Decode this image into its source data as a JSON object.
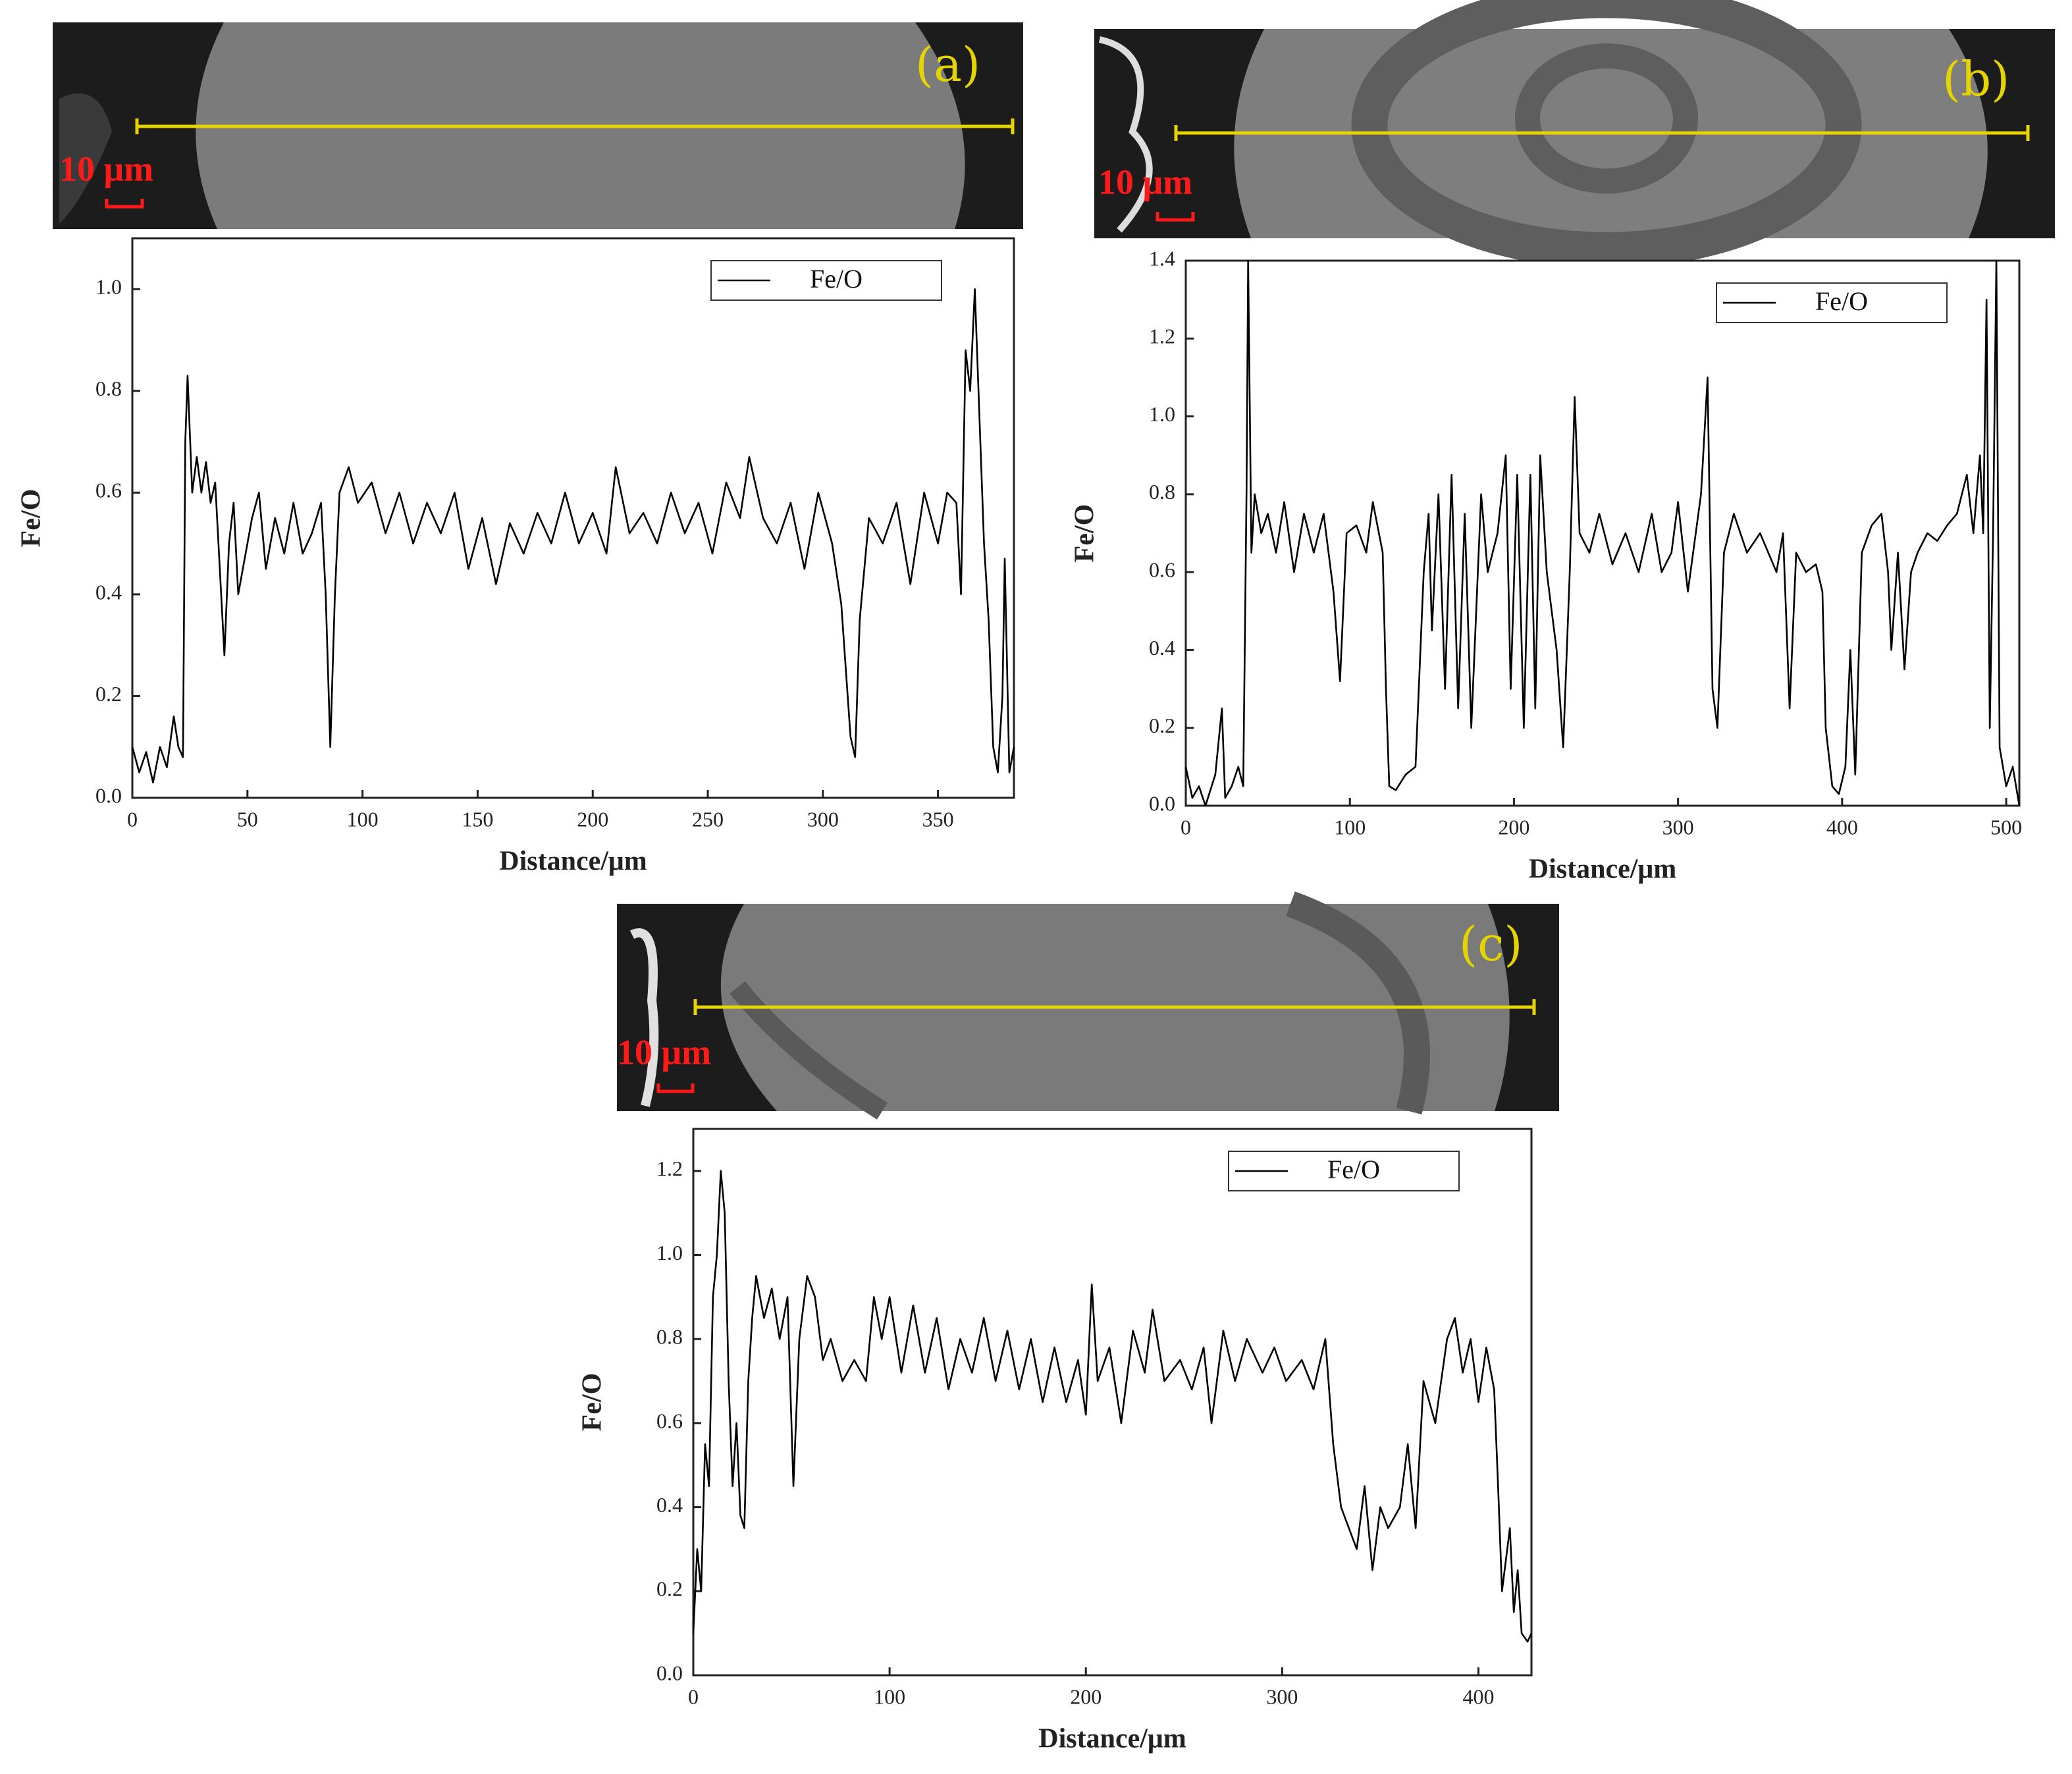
{
  "chart_data": [
    {
      "type": "line",
      "panel_label": "(a)",
      "scale_bar": "10 μm",
      "xlabel": "Distance/μm",
      "ylabel": "Fe/O",
      "legend": "upper right",
      "xlim": [
        0,
        383
      ],
      "ylim": [
        0,
        1.1
      ],
      "xticks": [
        0,
        50,
        100,
        150,
        200,
        250,
        300,
        350
      ],
      "yticks": [
        {
          "value": 0,
          "label": "0.0"
        },
        0.2,
        0.4,
        0.6,
        0.8,
        {
          "value": 1,
          "label": "1.0"
        }
      ],
      "x": [
        0,
        3,
        6,
        9,
        12,
        15,
        18,
        20,
        22,
        23,
        24,
        26,
        28,
        30,
        32,
        34,
        36,
        38,
        40,
        42,
        44,
        46,
        48,
        52,
        55,
        58,
        62,
        66,
        70,
        74,
        78,
        82,
        84,
        86,
        88,
        90,
        94,
        98,
        104,
        110,
        116,
        122,
        128,
        134,
        140,
        146,
        152,
        158,
        164,
        170,
        176,
        182,
        188,
        194,
        200,
        206,
        210,
        216,
        222,
        228,
        234,
        240,
        246,
        252,
        258,
        264,
        268,
        274,
        280,
        286,
        292,
        298,
        304,
        308,
        312,
        314,
        316,
        320,
        326,
        332,
        338,
        344,
        350,
        354,
        358,
        360,
        362,
        364,
        366,
        368,
        370,
        372,
        374,
        376,
        378,
        379,
        381,
        383
      ],
      "series": [
        {
          "name": "Fe/O",
          "color": "#000000",
          "values": [
            0.1,
            0.05,
            0.09,
            0.03,
            0.1,
            0.06,
            0.16,
            0.1,
            0.08,
            0.7,
            0.83,
            0.6,
            0.67,
            0.6,
            0.66,
            0.58,
            0.62,
            0.45,
            0.28,
            0.5,
            0.58,
            0.4,
            0.45,
            0.55,
            0.6,
            0.45,
            0.55,
            0.48,
            0.58,
            0.48,
            0.52,
            0.58,
            0.4,
            0.1,
            0.4,
            0.6,
            0.65,
            0.58,
            0.62,
            0.52,
            0.6,
            0.5,
            0.58,
            0.52,
            0.6,
            0.45,
            0.55,
            0.42,
            0.54,
            0.48,
            0.56,
            0.5,
            0.6,
            0.5,
            0.56,
            0.48,
            0.65,
            0.52,
            0.56,
            0.5,
            0.6,
            0.52,
            0.58,
            0.48,
            0.62,
            0.55,
            0.67,
            0.55,
            0.5,
            0.58,
            0.45,
            0.6,
            0.5,
            0.38,
            0.12,
            0.08,
            0.35,
            0.55,
            0.5,
            0.58,
            0.42,
            0.6,
            0.5,
            0.6,
            0.58,
            0.4,
            0.88,
            0.8,
            1.0,
            0.75,
            0.5,
            0.35,
            0.1,
            0.05,
            0.2,
            0.47,
            0.05,
            0.1
          ]
        }
      ]
    },
    {
      "type": "line",
      "panel_label": "(b)",
      "scale_bar": "10 μm",
      "xlabel": "Distance/μm",
      "ylabel": "Fe/O",
      "legend": "upper right",
      "xlim": [
        0,
        508
      ],
      "ylim": [
        0,
        1.4
      ],
      "xticks": [
        0,
        100,
        200,
        300,
        400,
        500
      ],
      "yticks": [
        {
          "value": 0,
          "label": "0.0"
        },
        0.2,
        0.4,
        0.6,
        0.8,
        {
          "value": 1,
          "label": "1.0"
        },
        1.2,
        1.4
      ],
      "x": [
        0,
        4,
        8,
        12,
        18,
        22,
        24,
        28,
        32,
        35,
        37,
        38,
        40,
        42,
        46,
        50,
        55,
        60,
        66,
        72,
        78,
        84,
        90,
        94,
        98,
        104,
        110,
        114,
        120,
        122,
        124,
        128,
        134,
        140,
        145,
        148,
        150,
        154,
        158,
        162,
        166,
        170,
        174,
        180,
        184,
        190,
        195,
        198,
        202,
        206,
        210,
        213,
        216,
        220,
        226,
        230,
        234,
        237,
        240,
        246,
        252,
        260,
        268,
        276,
        284,
        290,
        296,
        300,
        306,
        314,
        318,
        321,
        324,
        328,
        334,
        342,
        350,
        360,
        364,
        368,
        372,
        378,
        384,
        388,
        390,
        394,
        398,
        402,
        405,
        408,
        412,
        418,
        424,
        428,
        430,
        434,
        438,
        442,
        446,
        452,
        458,
        464,
        470,
        476,
        480,
        484,
        486,
        488,
        490,
        492,
        494,
        496,
        500,
        504,
        508
      ],
      "series": [
        {
          "name": "Fe/O",
          "color": "#000000",
          "values": [
            0.1,
            0.02,
            0.05,
            0.0,
            0.08,
            0.25,
            0.02,
            0.05,
            0.1,
            0.05,
            0.8,
            1.4,
            0.65,
            0.8,
            0.7,
            0.75,
            0.65,
            0.78,
            0.6,
            0.75,
            0.65,
            0.75,
            0.55,
            0.32,
            0.7,
            0.72,
            0.65,
            0.78,
            0.65,
            0.3,
            0.05,
            0.04,
            0.08,
            0.1,
            0.6,
            0.75,
            0.45,
            0.8,
            0.3,
            0.85,
            0.25,
            0.75,
            0.2,
            0.8,
            0.6,
            0.7,
            0.9,
            0.3,
            0.85,
            0.2,
            0.85,
            0.25,
            0.9,
            0.6,
            0.4,
            0.15,
            0.6,
            1.05,
            0.7,
            0.65,
            0.75,
            0.62,
            0.7,
            0.6,
            0.75,
            0.6,
            0.65,
            0.78,
            0.55,
            0.8,
            1.1,
            0.3,
            0.2,
            0.65,
            0.75,
            0.65,
            0.7,
            0.6,
            0.7,
            0.25,
            0.65,
            0.6,
            0.62,
            0.55,
            0.2,
            0.05,
            0.03,
            0.1,
            0.4,
            0.08,
            0.65,
            0.72,
            0.75,
            0.6,
            0.4,
            0.65,
            0.35,
            0.6,
            0.65,
            0.7,
            0.68,
            0.72,
            0.75,
            0.85,
            0.7,
            0.9,
            0.7,
            1.3,
            0.2,
            0.7,
            1.4,
            0.15,
            0.05,
            0.1,
            0.0
          ]
        }
      ]
    },
    {
      "type": "line",
      "panel_label": "(c)",
      "scale_bar": "10 μm",
      "xlabel": "Distance/μm",
      "ylabel": "Fe/O",
      "legend": "upper right",
      "xlim": [
        0,
        427
      ],
      "ylim": [
        0,
        1.3
      ],
      "xticks": [
        0,
        100,
        200,
        300,
        400
      ],
      "yticks": [
        {
          "value": 0,
          "label": "0.0"
        },
        0.2,
        0.4,
        0.6,
        0.8,
        {
          "value": 1,
          "label": "1.0"
        },
        1.2
      ],
      "x": [
        0,
        2,
        4,
        6,
        8,
        10,
        12,
        14,
        16,
        18,
        20,
        22,
        24,
        26,
        28,
        30,
        32,
        36,
        40,
        44,
        48,
        50,
        51,
        54,
        58,
        62,
        66,
        70,
        76,
        82,
        88,
        92,
        96,
        100,
        106,
        112,
        118,
        124,
        130,
        136,
        142,
        148,
        154,
        160,
        166,
        172,
        178,
        184,
        190,
        196,
        200,
        203,
        206,
        212,
        218,
        224,
        230,
        234,
        240,
        248,
        254,
        260,
        264,
        270,
        276,
        282,
        290,
        296,
        302,
        310,
        316,
        322,
        326,
        330,
        334,
        338,
        342,
        346,
        350,
        354,
        360,
        364,
        368,
        372,
        378,
        384,
        388,
        392,
        396,
        400,
        404,
        408,
        410,
        412,
        416,
        418,
        420,
        422,
        425,
        427
      ],
      "series": [
        {
          "name": "Fe/O",
          "color": "#000000",
          "values": [
            0.1,
            0.3,
            0.2,
            0.55,
            0.45,
            0.9,
            1.0,
            1.2,
            1.1,
            0.7,
            0.45,
            0.6,
            0.38,
            0.35,
            0.7,
            0.85,
            0.95,
            0.85,
            0.92,
            0.8,
            0.9,
            0.6,
            0.45,
            0.8,
            0.95,
            0.9,
            0.75,
            0.8,
            0.7,
            0.75,
            0.7,
            0.9,
            0.8,
            0.9,
            0.72,
            0.88,
            0.72,
            0.85,
            0.68,
            0.8,
            0.72,
            0.85,
            0.7,
            0.82,
            0.68,
            0.8,
            0.65,
            0.78,
            0.65,
            0.75,
            0.62,
            0.93,
            0.7,
            0.78,
            0.6,
            0.82,
            0.72,
            0.87,
            0.7,
            0.75,
            0.68,
            0.78,
            0.6,
            0.82,
            0.7,
            0.8,
            0.72,
            0.78,
            0.7,
            0.75,
            0.68,
            0.8,
            0.55,
            0.4,
            0.35,
            0.3,
            0.45,
            0.25,
            0.4,
            0.35,
            0.4,
            0.55,
            0.35,
            0.7,
            0.6,
            0.8,
            0.85,
            0.72,
            0.8,
            0.65,
            0.78,
            0.68,
            0.45,
            0.2,
            0.35,
            0.15,
            0.25,
            0.1,
            0.08,
            0.1
          ]
        }
      ]
    }
  ]
}
